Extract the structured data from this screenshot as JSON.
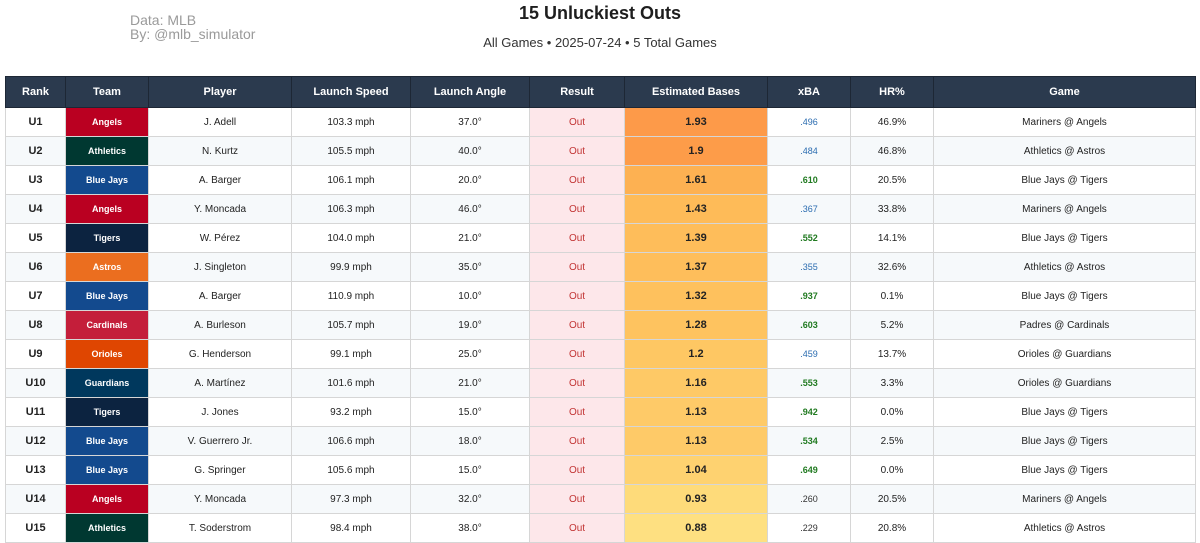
{
  "credit": {
    "line1": "Data: MLB",
    "line2": "By: @mlb_simulator"
  },
  "title": "15 Unluckiest Outs",
  "subtitle": "All Games • 2025-07-24 • 5 Total Games",
  "columns": [
    "Rank",
    "Team",
    "Player",
    "Launch Speed",
    "Launch Angle",
    "Result",
    "Estimated Bases",
    "xBA",
    "HR%",
    "Game"
  ],
  "team_colors": {
    "Angels": "#ba0021",
    "Athletics": "#003831",
    "Blue Jays": "#134a8e",
    "Tigers": "#0c2340",
    "Astros": "#eb6e1f",
    "Cardinals": "#c41e3a",
    "Orioles": "#df4601",
    "Guardians": "#00385d"
  },
  "xba_colors": {
    "blue": "#2b6cb0",
    "green": "#207a20",
    "plain": "#333333"
  },
  "rows": [
    {
      "rank": "U1",
      "team": "Angels",
      "player": "J. Adell",
      "speed": "103.3 mph",
      "angle": "37.0°",
      "result": "Out",
      "est": "1.93",
      "est_color": "#fd9a49",
      "xba": ".496",
      "xba_style": "blue",
      "hr": "46.9%",
      "game": "Mariners @ Angels"
    },
    {
      "rank": "U2",
      "team": "Athletics",
      "player": "N. Kurtz",
      "speed": "105.5 mph",
      "angle": "40.0°",
      "result": "Out",
      "est": "1.9",
      "est_color": "#fd9c49",
      "xba": ".484",
      "xba_style": "blue",
      "hr": "46.8%",
      "game": "Athletics @ Astros"
    },
    {
      "rank": "U3",
      "team": "Blue Jays",
      "player": "A. Barger",
      "speed": "106.1 mph",
      "angle": "20.0°",
      "result": "Out",
      "est": "1.61",
      "est_color": "#fdb152",
      "xba": ".610",
      "xba_style": "green",
      "hr": "20.5%",
      "game": "Blue Jays @ Tigers"
    },
    {
      "rank": "U4",
      "team": "Angels",
      "player": "Y. Moncada",
      "speed": "106.3 mph",
      "angle": "46.0°",
      "result": "Out",
      "est": "1.43",
      "est_color": "#febb58",
      "xba": ".367",
      "xba_style": "blue",
      "hr": "33.8%",
      "game": "Mariners @ Angels"
    },
    {
      "rank": "U5",
      "team": "Tigers",
      "player": "W. Pérez",
      "speed": "104.0 mph",
      "angle": "21.0°",
      "result": "Out",
      "est": "1.39",
      "est_color": "#febd5a",
      "xba": ".552",
      "xba_style": "green",
      "hr": "14.1%",
      "game": "Blue Jays @ Tigers"
    },
    {
      "rank": "U6",
      "team": "Astros",
      "player": "J. Singleton",
      "speed": "99.9 mph",
      "angle": "35.0°",
      "result": "Out",
      "est": "1.37",
      "est_color": "#febe5b",
      "xba": ".355",
      "xba_style": "blue",
      "hr": "32.6%",
      "game": "Athletics @ Astros"
    },
    {
      "rank": "U7",
      "team": "Blue Jays",
      "player": "A. Barger",
      "speed": "110.9 mph",
      "angle": "10.0°",
      "result": "Out",
      "est": "1.32",
      "est_color": "#fec15d",
      "xba": ".937",
      "xba_style": "green",
      "hr": "0.1%",
      "game": "Blue Jays @ Tigers"
    },
    {
      "rank": "U8",
      "team": "Cardinals",
      "player": "A. Burleson",
      "speed": "105.7 mph",
      "angle": "19.0°",
      "result": "Out",
      "est": "1.28",
      "est_color": "#fec35f",
      "xba": ".603",
      "xba_style": "green",
      "hr": "5.2%",
      "game": "Padres @ Cardinals"
    },
    {
      "rank": "U9",
      "team": "Orioles",
      "player": "G. Henderson",
      "speed": "99.1 mph",
      "angle": "25.0°",
      "result": "Out",
      "est": "1.2",
      "est_color": "#fec763",
      "xba": ".459",
      "xba_style": "blue",
      "hr": "13.7%",
      "game": "Orioles @ Guardians"
    },
    {
      "rank": "U10",
      "team": "Guardians",
      "player": "A. Martínez",
      "speed": "101.6 mph",
      "angle": "21.0°",
      "result": "Out",
      "est": "1.16",
      "est_color": "#fec966",
      "xba": ".553",
      "xba_style": "green",
      "hr": "3.3%",
      "game": "Orioles @ Guardians"
    },
    {
      "rank": "U11",
      "team": "Tigers",
      "player": "J. Jones",
      "speed": "93.2 mph",
      "angle": "15.0°",
      "result": "Out",
      "est": "1.13",
      "est_color": "#feca68",
      "xba": ".942",
      "xba_style": "green",
      "hr": "0.0%",
      "game": "Blue Jays @ Tigers"
    },
    {
      "rank": "U12",
      "team": "Blue Jays",
      "player": "V. Guerrero Jr.",
      "speed": "106.6 mph",
      "angle": "18.0°",
      "result": "Out",
      "est": "1.13",
      "est_color": "#feca68",
      "xba": ".534",
      "xba_style": "green",
      "hr": "2.5%",
      "game": "Blue Jays @ Tigers"
    },
    {
      "rank": "U13",
      "team": "Blue Jays",
      "player": "G. Springer",
      "speed": "105.6 mph",
      "angle": "15.0°",
      "result": "Out",
      "est": "1.04",
      "est_color": "#fed270",
      "xba": ".649",
      "xba_style": "green",
      "hr": "0.0%",
      "game": "Blue Jays @ Tigers"
    },
    {
      "rank": "U14",
      "team": "Angels",
      "player": "Y. Moncada",
      "speed": "97.3 mph",
      "angle": "32.0°",
      "result": "Out",
      "est": "0.93",
      "est_color": "#fedb7a",
      "xba": ".260",
      "xba_style": "plain",
      "hr": "20.5%",
      "game": "Mariners @ Angels"
    },
    {
      "rank": "U15",
      "team": "Athletics",
      "player": "T. Soderstrom",
      "speed": "98.4 mph",
      "angle": "38.0°",
      "result": "Out",
      "est": "0.88",
      "est_color": "#fee081",
      "xba": ".229",
      "xba_style": "plain",
      "hr": "20.8%",
      "game": "Athletics @ Astros"
    }
  ]
}
